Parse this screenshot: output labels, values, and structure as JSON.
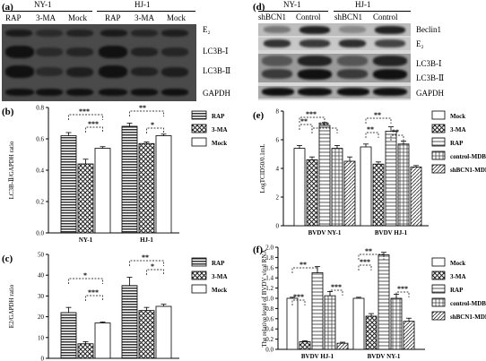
{
  "panels": {
    "a": {
      "letter": "(a)",
      "groups": [
        "NY-1",
        "HJ-1"
      ],
      "lanes": [
        "RAP",
        "3-MA",
        "Mock",
        "RAP",
        "3-MA",
        "Mock"
      ],
      "bands": [
        "E₂",
        "LC3B-Ⅰ",
        "LC3B-Ⅱ",
        "GAPDH"
      ]
    },
    "d": {
      "letter": "(d)",
      "groups": [
        "NY-1",
        "HJ-1"
      ],
      "lanes": [
        "shBCN1",
        "Control",
        "shBCN1",
        "Control"
      ],
      "bands": [
        "Beclin1",
        "E₂",
        "LC3B-Ⅰ",
        "LC3B-Ⅱ",
        "GAPDH"
      ]
    }
  },
  "chart_data": [
    {
      "id": "b",
      "letter": "(b)",
      "type": "bar",
      "categories": [
        "NY-1",
        "HJ-1"
      ],
      "series": [
        {
          "name": "RAP",
          "values": [
            0.62,
            0.68
          ],
          "errors": [
            0.02,
            0.02
          ]
        },
        {
          "name": "3-MA",
          "values": [
            0.44,
            0.57
          ],
          "errors": [
            0.03,
            0.01
          ]
        },
        {
          "name": "Mock",
          "values": [
            0.54,
            0.62
          ],
          "errors": [
            0.01,
            0.01
          ]
        }
      ],
      "ylabel": "LC3B-Ⅱ/GAPDH ratio",
      "ylim": [
        0,
        0.8
      ],
      "yticks": [
        "0.0",
        "0.2",
        "0.4",
        "0.6",
        "0.8"
      ],
      "significance": [
        "***",
        "***",
        "**",
        "*"
      ]
    },
    {
      "id": "c",
      "letter": "(c)",
      "type": "bar",
      "categories": [
        "NY-1",
        "HJ-1"
      ],
      "series": [
        {
          "name": "RAP",
          "values": [
            22,
            35
          ],
          "errors": [
            2.5,
            4
          ]
        },
        {
          "name": "3-MA",
          "values": [
            7,
            23
          ],
          "errors": [
            1,
            1.5
          ]
        },
        {
          "name": "Mock",
          "values": [
            17,
            25
          ],
          "errors": [
            0.5,
            1
          ]
        }
      ],
      "ylabel": "E2/GAPDH ratio",
      "ylim": [
        0,
        50
      ],
      "yticks": [
        "0",
        "10",
        "20",
        "30",
        "40",
        "50"
      ],
      "significance": [
        "*",
        "***",
        "**",
        "*"
      ]
    },
    {
      "id": "e",
      "letter": "(e)",
      "type": "bar",
      "categories": [
        "BVDV NY-1",
        "BVDV HJ-1"
      ],
      "series": [
        {
          "name": "Mock",
          "values": [
            5.4,
            5.5
          ],
          "errors": [
            0.2,
            0.2
          ]
        },
        {
          "name": "3-MA",
          "values": [
            4.6,
            4.3
          ],
          "errors": [
            0.2,
            0.15
          ]
        },
        {
          "name": "RAP",
          "values": [
            7.0,
            6.6
          ],
          "errors": [
            0.2,
            0.3
          ]
        },
        {
          "name": "control-MDBK",
          "values": [
            5.4,
            5.7
          ],
          "errors": [
            0.2,
            0.2
          ]
        },
        {
          "name": "shBCN1-MDBK",
          "values": [
            4.5,
            4.1
          ],
          "errors": [
            0.3,
            0.1
          ]
        }
      ],
      "ylabel": "LogTCID50/0.1mL",
      "ylim": [
        0,
        8
      ],
      "yticks": [
        "0",
        "2",
        "4",
        "6",
        "8"
      ],
      "significance": [
        "**",
        "***",
        "***",
        "**",
        "**",
        "**"
      ]
    },
    {
      "id": "f",
      "letter": "(f)",
      "type": "bar",
      "categories": [
        "BVDV HJ-1",
        "BVDV NY-1"
      ],
      "series": [
        {
          "name": "Mock",
          "values": [
            1.0,
            1.0
          ],
          "errors": [
            0.02,
            0.02
          ]
        },
        {
          "name": "3-MA",
          "values": [
            0.15,
            0.65
          ],
          "errors": [
            0.02,
            0.05
          ]
        },
        {
          "name": "RAP",
          "values": [
            1.5,
            1.85
          ],
          "errors": [
            0.12,
            0.05
          ]
        },
        {
          "name": "control-MDBK",
          "values": [
            1.05,
            1.0
          ],
          "errors": [
            0.08,
            0.08
          ]
        },
        {
          "name": "shBCN1-MDBK",
          "values": [
            0.12,
            0.55
          ],
          "errors": [
            0.02,
            0.06
          ]
        }
      ],
      "ylabel": "The relative level of BVDV viral RNA",
      "ylim": [
        0,
        2.0
      ],
      "yticks": [
        "0.0",
        "0.2",
        "0.4",
        "0.6",
        "0.8",
        "1.0",
        "1.2",
        "1.4",
        "1.6",
        "1.8",
        "2.0"
      ],
      "significance": [
        "***",
        "**",
        "***",
        "**",
        "***",
        "***"
      ]
    }
  ]
}
